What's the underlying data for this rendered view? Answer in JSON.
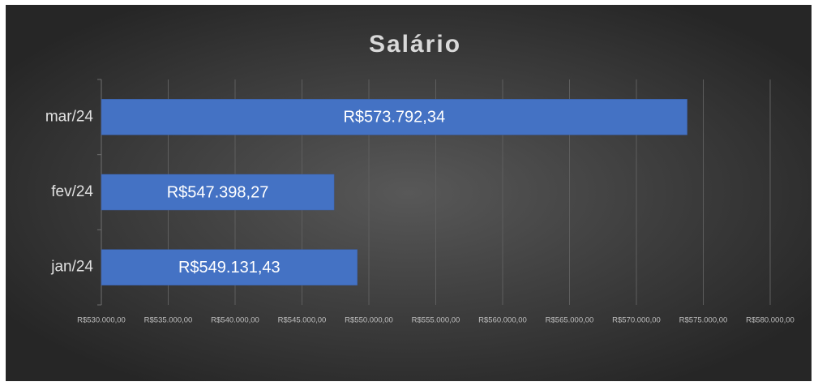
{
  "chart_data": {
    "type": "bar",
    "orientation": "horizontal",
    "title": "Salário",
    "categories": [
      "jan/24",
      "fev/24",
      "mar/24"
    ],
    "values": [
      549131.43,
      547398.27,
      573792.34
    ],
    "value_labels": [
      "R$549.131,43",
      "R$547.398,27",
      "R$573.792,34"
    ],
    "color": "#4472c4",
    "xlim": [
      530000,
      580000
    ],
    "xticks": [
      {
        "value": 530000,
        "label": "R$530.000,00"
      },
      {
        "value": 535000,
        "label": "R$535.000,00"
      },
      {
        "value": 540000,
        "label": "R$540.000,00"
      },
      {
        "value": 545000,
        "label": "R$545.000,00"
      },
      {
        "value": 550000,
        "label": "R$550.000,00"
      },
      {
        "value": 555000,
        "label": "R$555.000,00"
      },
      {
        "value": 560000,
        "label": "R$560.000,00"
      },
      {
        "value": 565000,
        "label": "R$565.000,00"
      },
      {
        "value": 570000,
        "label": "R$570.000,00"
      },
      {
        "value": 575000,
        "label": "R$575.000,00"
      },
      {
        "value": 580000,
        "label": "R$580.000,00"
      }
    ],
    "grid": true
  }
}
